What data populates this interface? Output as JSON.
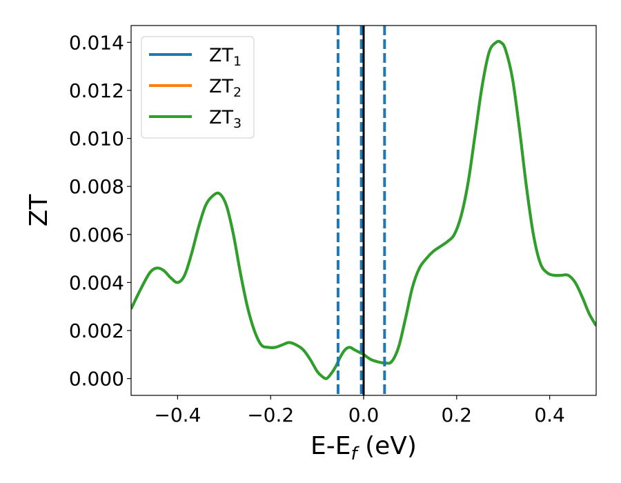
{
  "chart_data": {
    "type": "line",
    "title": "",
    "xlabel": {
      "base": "E-E",
      "sub": "f",
      "suffix": " (eV)"
    },
    "ylabel": "ZT",
    "xlim": [
      -0.5,
      0.5
    ],
    "ylim": [
      -0.0007,
      0.0147
    ],
    "xticks": [
      -0.4,
      -0.2,
      0.0,
      0.2,
      0.4
    ],
    "xtick_labels": [
      "−0.4",
      "−0.2",
      "0.0",
      "0.2",
      "0.4"
    ],
    "yticks": [
      0.0,
      0.002,
      0.004,
      0.006,
      0.008,
      0.01,
      0.012,
      0.014
    ],
    "ytick_labels": [
      "0.000",
      "0.002",
      "0.004",
      "0.006",
      "0.008",
      "0.010",
      "0.012",
      "0.014"
    ],
    "grid": false,
    "legend_position": "top-left",
    "series": [
      {
        "name": "ZT",
        "sub": "1",
        "color": "#1f77b4"
      },
      {
        "name": "ZT",
        "sub": "2",
        "color": "#ff7f0e"
      },
      {
        "name": "ZT",
        "sub": "3",
        "color": "#2ca02c"
      }
    ],
    "x": [
      -0.5,
      -0.48,
      -0.46,
      -0.445,
      -0.43,
      -0.415,
      -0.4,
      -0.385,
      -0.37,
      -0.355,
      -0.34,
      -0.325,
      -0.31,
      -0.295,
      -0.28,
      -0.265,
      -0.25,
      -0.235,
      -0.22,
      -0.205,
      -0.19,
      -0.175,
      -0.16,
      -0.145,
      -0.13,
      -0.115,
      -0.1,
      -0.09,
      -0.08,
      -0.07,
      -0.06,
      -0.05,
      -0.04,
      -0.03,
      -0.02,
      -0.01,
      0.0,
      0.015,
      0.03,
      0.045,
      0.06,
      0.075,
      0.09,
      0.105,
      0.12,
      0.135,
      0.15,
      0.165,
      0.18,
      0.195,
      0.21,
      0.225,
      0.24,
      0.255,
      0.27,
      0.285,
      0.295,
      0.305,
      0.32,
      0.335,
      0.35,
      0.365,
      0.38,
      0.395,
      0.41,
      0.425,
      0.44,
      0.455,
      0.47,
      0.485,
      0.5
    ],
    "y": [
      0.0029,
      0.0037,
      0.0044,
      0.0046,
      0.0045,
      0.0042,
      0.004,
      0.0043,
      0.0052,
      0.0063,
      0.0072,
      0.0076,
      0.0077,
      0.0072,
      0.006,
      0.0044,
      0.003,
      0.002,
      0.0014,
      0.0013,
      0.0013,
      0.0014,
      0.0015,
      0.0014,
      0.0012,
      0.0008,
      0.0003,
      0.0001,
      0.0,
      0.0002,
      0.0005,
      0.0009,
      0.0012,
      0.0013,
      0.0012,
      0.0011,
      0.001,
      0.0008,
      0.0007,
      0.00065,
      0.0007,
      0.0013,
      0.0025,
      0.0038,
      0.0046,
      0.005,
      0.0053,
      0.0055,
      0.0057,
      0.006,
      0.0068,
      0.0082,
      0.0102,
      0.0122,
      0.0136,
      0.014,
      0.014,
      0.0137,
      0.0125,
      0.0104,
      0.008,
      0.006,
      0.0048,
      0.0044,
      0.0043,
      0.0043,
      0.0043,
      0.004,
      0.0034,
      0.0027,
      0.0022
    ],
    "vlines": [
      {
        "x": -0.055,
        "style": "dashed",
        "color": "#1f77b4"
      },
      {
        "x": -0.005,
        "style": "dashed",
        "color": "#1f77b4"
      },
      {
        "x": 0.045,
        "style": "dashed",
        "color": "#1f77b4"
      },
      {
        "x": 0.0,
        "style": "solid",
        "color": "#000000"
      }
    ]
  }
}
